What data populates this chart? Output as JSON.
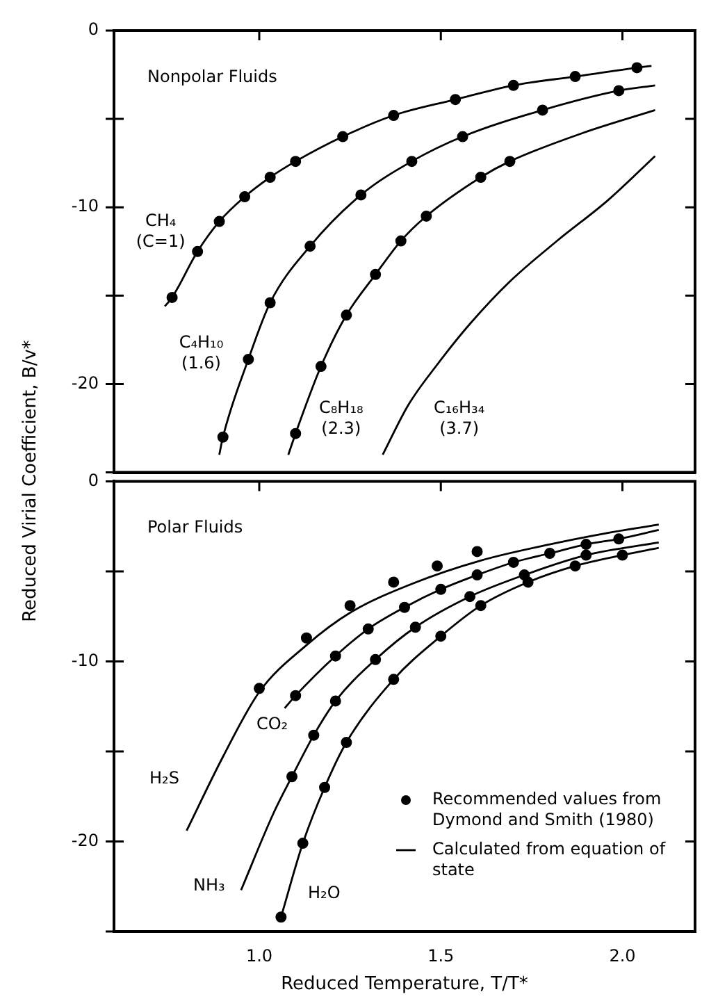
{
  "chart_data": [
    {
      "type": "scatter",
      "title": "Nonpolar Fluids",
      "ylabel": "Reduced Virial Coefficient, B/v*",
      "xlim": [
        0.6,
        2.2
      ],
      "ylim": [
        -25,
        0
      ],
      "xticks": [
        {
          "value": 1,
          "label": null
        },
        {
          "value": 1.5,
          "label": null
        },
        {
          "value": 2,
          "label": null
        }
      ],
      "yticks": [
        -20,
        -10,
        0
      ],
      "tick_labels": "y",
      "legend": false,
      "line_style": "solid",
      "annotations": [
        "CH₄ (C=1)",
        "C₄H₁₀ (1.6)",
        "C₈H₁₈ (2.3)",
        "C₁₆H₃₄ (3.7)"
      ],
      "series": [
        {
          "marker": "circle",
          "color": "#000000",
          "x": [
            0.76,
            0.83,
            0.89,
            0.96,
            1.03,
            1.1,
            1.23,
            1.37,
            1.54,
            1.7,
            1.87,
            2.04,
            0.9,
            0.97,
            1.03,
            1.14,
            1.28,
            1.42,
            1.56,
            1.78,
            1.99,
            1.1,
            1.17,
            1.24,
            1.32,
            1.39,
            1.46,
            1.61,
            1.69
          ],
          "values": [
            -15.1,
            -12.5,
            -10.8,
            -9.4,
            -8.3,
            -7.4,
            -6.0,
            -4.8,
            -3.9,
            -3.1,
            -2.6,
            -2.1,
            -23.0,
            -18.6,
            -15.4,
            -12.2,
            -9.3,
            -7.4,
            -6.0,
            -4.5,
            -3.4,
            -22.8,
            -19.0,
            -16.1,
            -13.8,
            -11.9,
            -10.5,
            -8.3,
            -7.4
          ]
        },
        {
          "type": "line",
          "marker": "none",
          "color": "#000000",
          "x": [
            0.74,
            0.76,
            0.83,
            0.89,
            0.96,
            1.03,
            1.1,
            1.23,
            1.37,
            1.54,
            1.7,
            1.87,
            2.04,
            2.08,
            null,
            0.89,
            0.9,
            0.97,
            1.03,
            1.14,
            1.28,
            1.42,
            1.56,
            1.78,
            1.99,
            2.09,
            null,
            1.08,
            1.1,
            1.17,
            1.24,
            1.32,
            1.39,
            1.46,
            1.61,
            1.69,
            1.89,
            2.09,
            null,
            1.34,
            1.41,
            1.49,
            1.58,
            1.69,
            1.82,
            1.96,
            2.09
          ],
          "values": [
            -15.6,
            -15.1,
            -12.5,
            -10.8,
            -9.4,
            -8.3,
            -7.4,
            -6.0,
            -4.8,
            -3.9,
            -3.1,
            -2.6,
            -2.1,
            -2.0,
            null,
            -24.0,
            -23.0,
            -18.6,
            -15.4,
            -12.2,
            -9.3,
            -7.4,
            -6.0,
            -4.5,
            -3.4,
            -3.1,
            null,
            -24.0,
            -22.8,
            -19.0,
            -16.1,
            -13.8,
            -11.9,
            -10.5,
            -8.3,
            -7.4,
            -5.8,
            -4.5,
            null,
            -24.0,
            -21.2,
            -18.9,
            -16.6,
            -14.2,
            -11.9,
            -9.6,
            -7.1
          ]
        }
      ]
    },
    {
      "type": "scatter",
      "title": "Polar Fluids",
      "xlabel": "Reduced Temperature, T/T*",
      "xlim": [
        0.6,
        2.2
      ],
      "ylim": [
        -25,
        0
      ],
      "xticks": [
        {
          "value": 1,
          "label": "1.0"
        },
        {
          "value": 1.5,
          "label": "1.5"
        },
        {
          "value": 2,
          "label": "2.0"
        }
      ],
      "yticks": [
        -20,
        -10,
        0
      ],
      "legend": "bottom right",
      "line_style": "solid",
      "annotations": [
        "H₂S",
        "CO₂",
        "NH₃",
        "H₂O"
      ],
      "series": [
        {
          "name": "Recommended values from Dymond and Smith (1980)",
          "marker": "circle",
          "color": "#000000",
          "x": [
            1.0,
            1.13,
            1.25,
            1.37,
            1.49,
            1.6,
            1.1,
            1.21,
            1.3,
            1.4,
            1.5,
            1.6,
            1.7,
            1.8,
            1.9,
            1.99,
            1.09,
            1.15,
            1.21,
            1.32,
            1.43,
            1.58,
            1.73,
            1.9,
            1.06,
            1.12,
            1.18,
            1.24,
            1.37,
            1.5,
            1.61,
            1.74,
            1.87,
            2.0
          ],
          "values": [
            -11.5,
            -8.7,
            -6.9,
            -5.6,
            -4.7,
            -3.9,
            -11.9,
            -9.7,
            -8.2,
            -7.0,
            -6.0,
            -5.2,
            -4.5,
            -4.0,
            -3.5,
            -3.2,
            -16.4,
            -14.1,
            -12.2,
            -9.9,
            -8.1,
            -6.4,
            -5.2,
            -4.1,
            -24.2,
            -20.1,
            -17.0,
            -14.5,
            -11.0,
            -8.6,
            -6.9,
            -5.6,
            -4.7,
            -4.1
          ]
        },
        {
          "type": "line",
          "name": "Calculated from equation of state",
          "marker": "none",
          "color": "#000000",
          "x": [
            0.8,
            0.9,
            1.0,
            1.13,
            1.25,
            1.42,
            1.61,
            1.8,
            1.95,
            2.1,
            null,
            1.07,
            1.1,
            1.21,
            1.3,
            1.4,
            1.5,
            1.6,
            1.7,
            1.8,
            1.9,
            1.99,
            2.1,
            null,
            0.95,
            1.04,
            1.09,
            1.15,
            1.21,
            1.32,
            1.43,
            1.58,
            1.73,
            1.9,
            2.1,
            null,
            1.06,
            1.12,
            1.18,
            1.24,
            1.37,
            1.5,
            1.61,
            1.74,
            1.87,
            2.0,
            2.1
          ],
          "values": [
            -19.4,
            -15.3,
            -11.7,
            -9.1,
            -7.3,
            -5.7,
            -4.4,
            -3.5,
            -2.9,
            -2.4,
            null,
            -12.6,
            -11.9,
            -9.7,
            -8.2,
            -7.0,
            -6.0,
            -5.2,
            -4.5,
            -4.0,
            -3.5,
            -3.2,
            -2.7,
            null,
            -22.7,
            -18.4,
            -16.4,
            -14.1,
            -12.2,
            -9.9,
            -8.1,
            -6.4,
            -5.2,
            -4.1,
            -3.4,
            null,
            -24.2,
            -20.1,
            -17.0,
            -14.5,
            -11.0,
            -8.6,
            -6.9,
            -5.6,
            -4.7,
            -4.1,
            -3.7
          ]
        }
      ]
    }
  ]
}
